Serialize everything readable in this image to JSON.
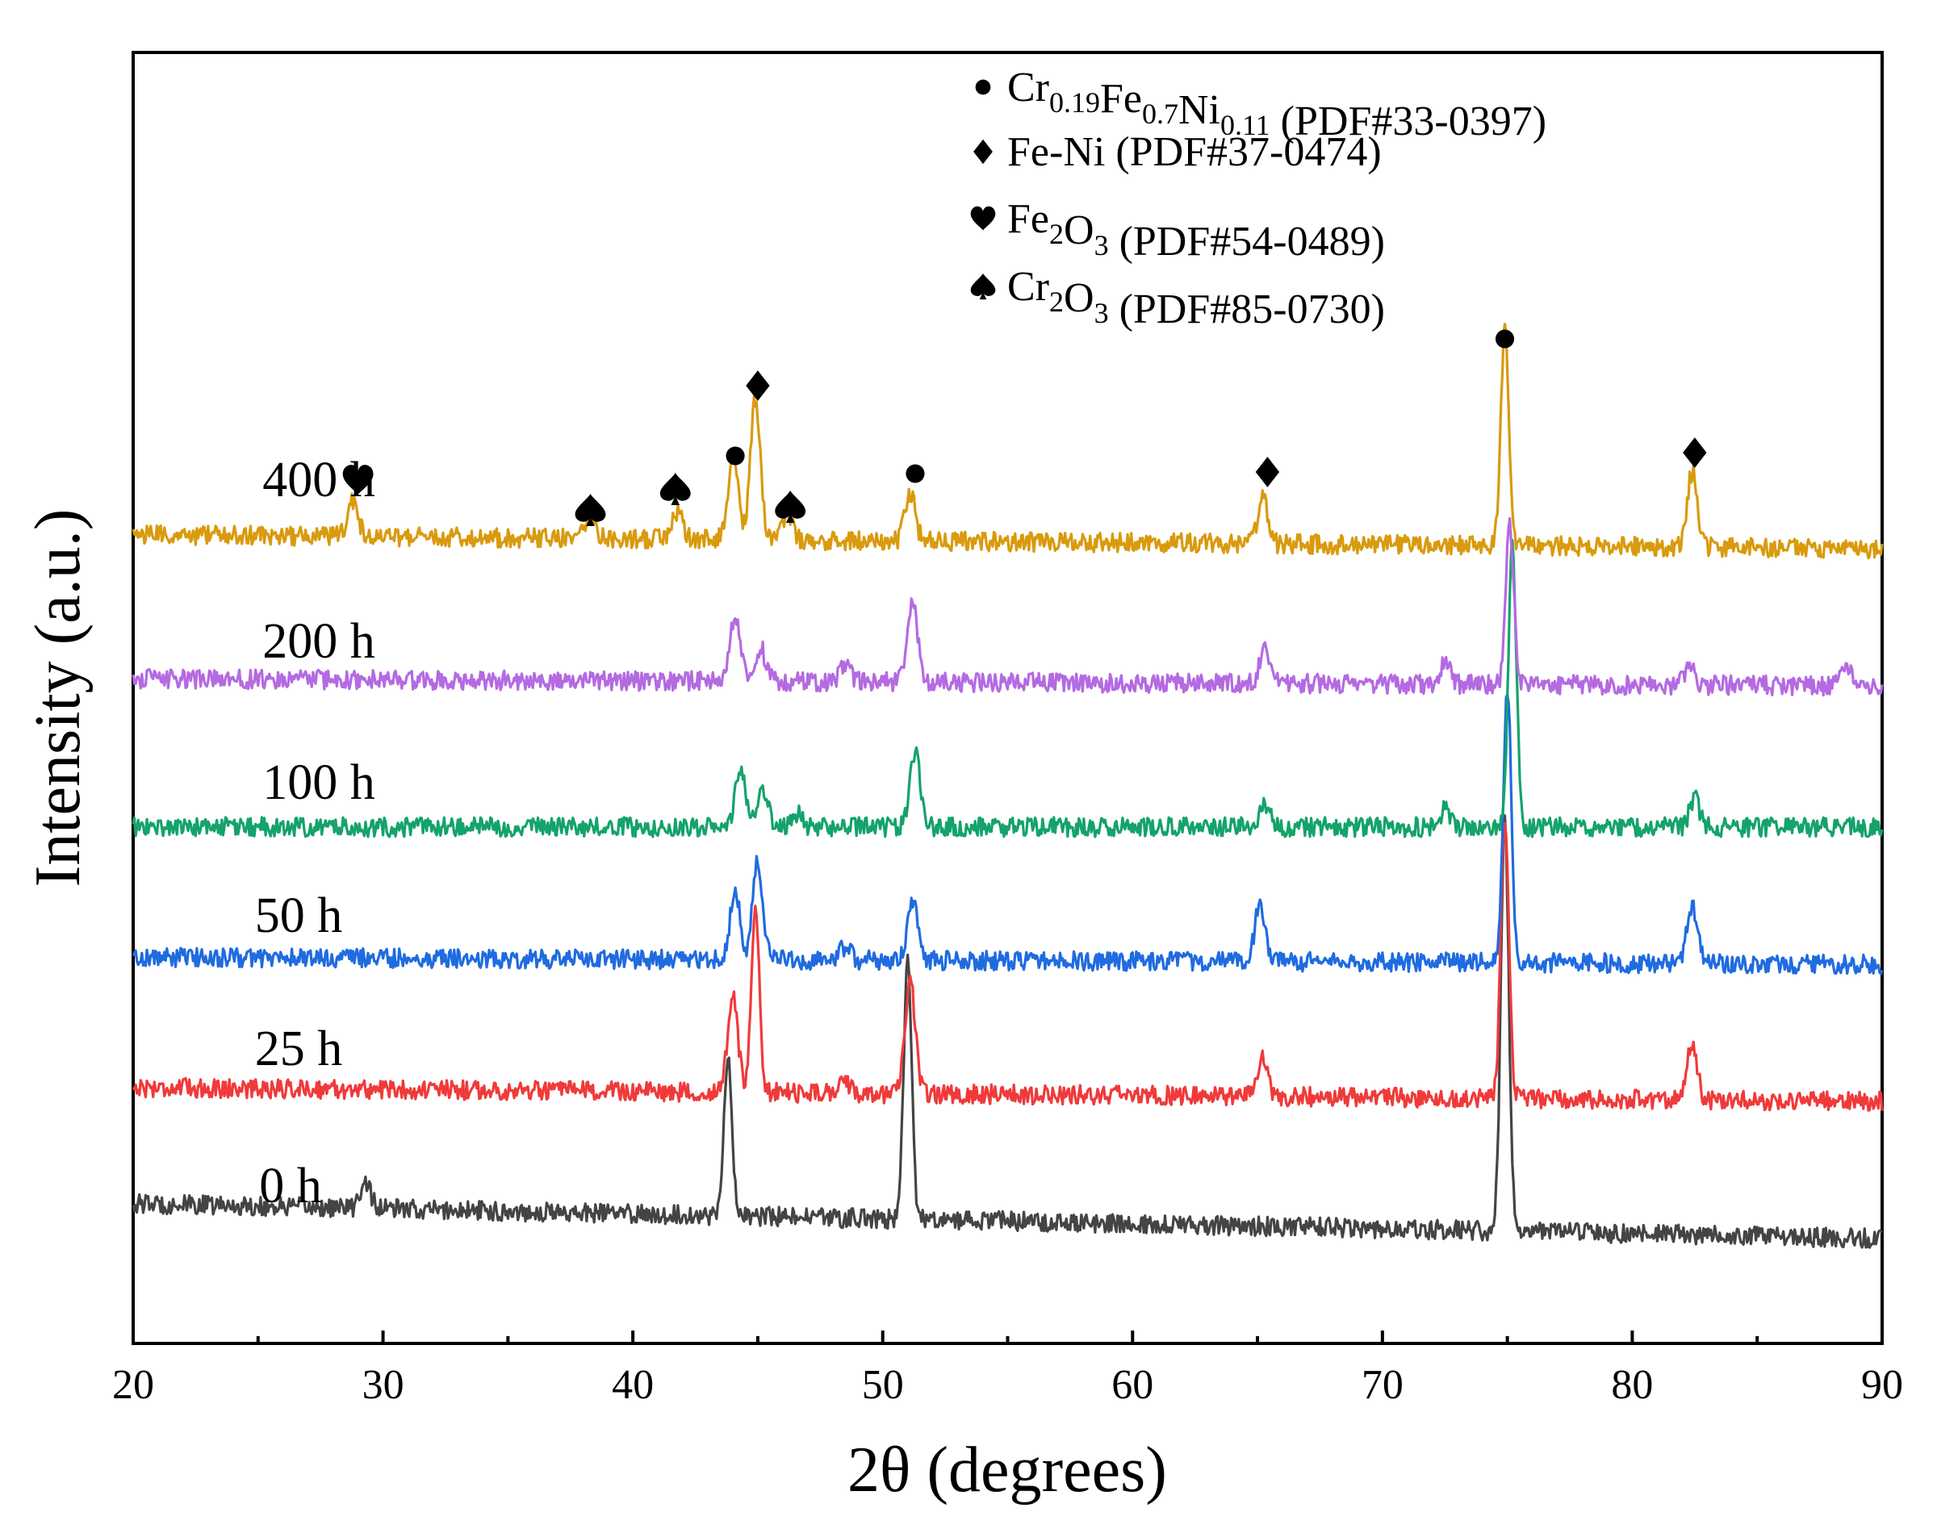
{
  "chart_data": {
    "type": "line",
    "title": "",
    "xlabel": "2θ (degrees)",
    "ylabel": "Intensity (a.u.)",
    "xlim": [
      20,
      90
    ],
    "xticks": [
      20,
      30,
      40,
      50,
      60,
      70,
      80,
      90
    ],
    "minor_xticks": [
      25,
      35,
      45,
      55,
      65,
      75,
      85
    ],
    "grid": false,
    "series": [
      {
        "name": "0 h",
        "label": "0 h",
        "color": "#444444",
        "baseline_start": 0.5,
        "baseline_end": 0.0,
        "noise": 0.14,
        "peaks": [
          [
            29.3,
            0.4
          ],
          [
            43.8,
            2.3
          ],
          [
            51.0,
            3.7
          ],
          [
            74.9,
            5.9
          ]
        ]
      },
      {
        "name": "25 h",
        "label": "25 h",
        "color": "#f03a3a",
        "baseline_start": 0.2,
        "baseline_end": 0.0,
        "noise": 0.14,
        "peaks": [
          [
            44.0,
            1.4
          ],
          [
            44.9,
            2.7
          ],
          [
            51.1,
            1.6
          ],
          [
            48.4,
            0.25
          ],
          [
            65.2,
            0.55
          ],
          [
            74.9,
            4.1
          ],
          [
            82.4,
            0.8
          ]
        ]
      },
      {
        "name": "50 h",
        "label": "50 h",
        "color": "#1f6be0",
        "baseline_start": 0.1,
        "baseline_end": 0.0,
        "noise": 0.14,
        "peaks": [
          [
            44.1,
            1.0
          ],
          [
            45.0,
            1.4
          ],
          [
            51.2,
            0.85
          ],
          [
            48.5,
            0.2
          ],
          [
            65.1,
            0.85
          ],
          [
            75.0,
            4.0
          ],
          [
            82.4,
            0.85
          ]
        ]
      },
      {
        "name": "100 h",
        "label": "100 h",
        "color": "#14a36a",
        "baseline_start": 0.0,
        "baseline_end": 0.0,
        "noise": 0.14,
        "peaks": [
          [
            44.3,
            0.8
          ],
          [
            45.2,
            0.55
          ],
          [
            51.3,
            1.1
          ],
          [
            46.6,
            0.2
          ],
          [
            65.3,
            0.3
          ],
          [
            72.5,
            0.25
          ],
          [
            75.2,
            4.1
          ],
          [
            82.5,
            0.4
          ]
        ]
      },
      {
        "name": "200 h",
        "label": "200 h",
        "color": "#b46ae2",
        "baseline_start": 0.1,
        "baseline_end": 0.0,
        "noise": 0.14,
        "peaks": [
          [
            44.1,
            0.95
          ],
          [
            45.1,
            0.5
          ],
          [
            51.2,
            1.1
          ],
          [
            48.5,
            0.25
          ],
          [
            65.3,
            0.5
          ],
          [
            72.5,
            0.3
          ],
          [
            75.1,
            2.3
          ],
          [
            82.3,
            0.25
          ],
          [
            88.6,
            0.25
          ]
        ]
      },
      {
        "name": "400 h",
        "label": "400 h",
        "color": "#d99a0d",
        "baseline_start": 0.2,
        "baseline_end": 0.0,
        "noise": 0.14,
        "peaks": [
          [
            28.8,
            0.5
          ],
          [
            38.3,
            0.35
          ],
          [
            41.8,
            0.4
          ],
          [
            44.0,
            1.2
          ],
          [
            44.9,
            2.0
          ],
          [
            46.2,
            0.35
          ],
          [
            51.1,
            0.7
          ],
          [
            65.2,
            0.65
          ],
          [
            74.9,
            3.1
          ],
          [
            82.4,
            1.1
          ]
        ]
      }
    ],
    "annotations": [
      {
        "marker": "heart",
        "x": 29.0
      },
      {
        "marker": "spade",
        "x": 38.3
      },
      {
        "marker": "spade",
        "x": 41.7
      },
      {
        "marker": "circle",
        "x": 44.1
      },
      {
        "marker": "diamond",
        "x": 45.0
      },
      {
        "marker": "spade",
        "x": 46.3
      },
      {
        "marker": "circle",
        "x": 51.3
      },
      {
        "marker": "diamond",
        "x": 65.4
      },
      {
        "marker": "circle",
        "x": 74.9
      },
      {
        "marker": "diamond",
        "x": 82.5
      }
    ],
    "legend": {
      "position": "top-right",
      "entries": [
        {
          "marker": "circle",
          "formula": [
            [
              "Cr",
              "0.19"
            ],
            [
              "Fe",
              "0.7"
            ],
            [
              "Ni",
              "0.11"
            ]
          ],
          "ref": "(PDF#33-0397)"
        },
        {
          "marker": "diamond",
          "formula": [
            [
              "Fe-Ni",
              ""
            ]
          ],
          "ref": "(PDF#37-0474)"
        },
        {
          "marker": "heart",
          "formula": [
            [
              "Fe",
              "2"
            ],
            [
              "O",
              "3"
            ]
          ],
          "ref": "(PDF#54-0489)"
        },
        {
          "marker": "spade",
          "formula": [
            [
              "Cr",
              "2"
            ],
            [
              "O",
              "3"
            ]
          ],
          "ref": "(PDF#85-0730)"
        }
      ]
    }
  }
}
